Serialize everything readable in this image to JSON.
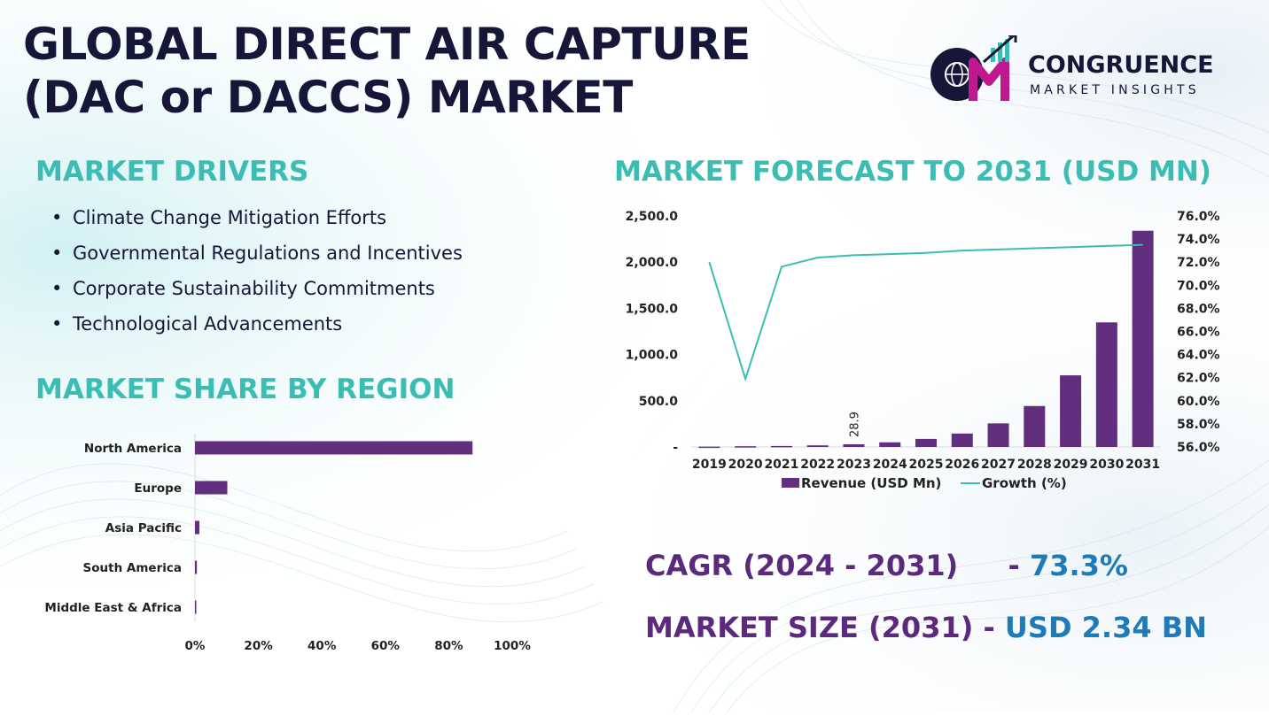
{
  "title": {
    "line1": "GLOBAL DIRECT AIR CAPTURE",
    "line2": "(DAC or DACCS) MARKET"
  },
  "logo": {
    "initials": "CM",
    "name": "CONGRUENCE",
    "tagline": "MARKET INSIGHTS"
  },
  "drivers": {
    "heading": "MARKET DRIVERS",
    "items": [
      "Climate Change Mitigation Efforts",
      "Governmental Regulations and Incentives",
      "Corporate Sustainability Commitments",
      "Technological Advancements"
    ]
  },
  "region": {
    "heading": "MARKET SHARE BY REGION"
  },
  "forecast": {
    "heading": "MARKET FORECAST TO 2031 (USD MN)"
  },
  "stats": {
    "cagr_label": "CAGR (2024 - 2031)",
    "cagr_sep": "- ",
    "cagr_value": "73.3%",
    "size_label": "MARKET SIZE (2031)",
    "size_sep": " - ",
    "size_value": "USD 2.34 BN"
  },
  "colors": {
    "bar": "#622e7e",
    "line": "#3cbdb3",
    "heading": "#3cbdb3",
    "dark": "#161638",
    "accent_blue": "#1f7ab8"
  },
  "chart_data": [
    {
      "type": "bar",
      "orientation": "horizontal",
      "categories": [
        "North America",
        "Europe",
        "Asia Pacific",
        "South America",
        "Middle East & Africa"
      ],
      "values": [
        87.5,
        10.2,
        1.4,
        0.6,
        0.3
      ],
      "xlim": [
        0,
        100
      ],
      "xticks": [
        "0%",
        "20%",
        "40%",
        "60%",
        "80%",
        "100%"
      ],
      "grid": false,
      "legend": "none"
    },
    {
      "type": "bar",
      "combo_with": "line",
      "categories": [
        "2019",
        "2020",
        "2021",
        "2022",
        "2023",
        "2024",
        "2025",
        "2026",
        "2027",
        "2028",
        "2029",
        "2030",
        "2031"
      ],
      "series": [
        {
          "name": "Revenue (USD Mn)",
          "type": "bar",
          "axis": "left",
          "values": [
            3.6,
            7.8,
            10.5,
            17.0,
            28.9,
            50.0,
            87.0,
            145.0,
            255.0,
            443.0,
            775.0,
            1348.0,
            2340.0
          ]
        },
        {
          "name": "Growth (%)",
          "type": "line",
          "axis": "right",
          "values": [
            72.0,
            61.9,
            71.6,
            72.4,
            72.6,
            72.7,
            72.8,
            73.0,
            73.1,
            73.2,
            73.3,
            73.4,
            73.5
          ]
        }
      ],
      "data_labels": [
        {
          "category": "2023",
          "text": "28.9"
        }
      ],
      "ylim_left": [
        0,
        2500
      ],
      "yticks_left": [
        "-",
        "500.0",
        "1,000.0",
        "1,500.0",
        "2,000.0",
        "2,500.0"
      ],
      "ylim_right": [
        56,
        76
      ],
      "yticks_right": [
        "56.0%",
        "58.0%",
        "60.0%",
        "62.0%",
        "64.0%",
        "66.0%",
        "68.0%",
        "70.0%",
        "72.0%",
        "74.0%",
        "76.0%"
      ],
      "grid": false,
      "legend": "bottom"
    }
  ]
}
